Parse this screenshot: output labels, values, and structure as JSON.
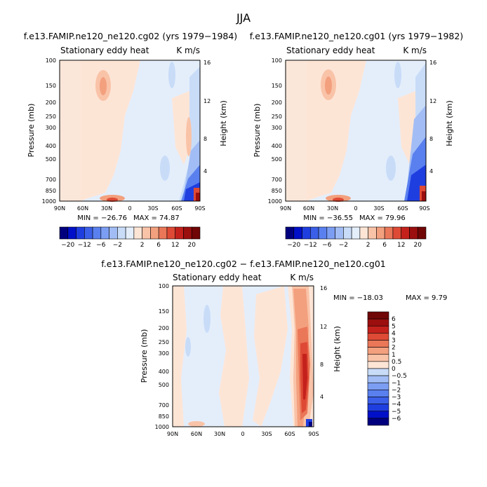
{
  "title": "JJA",
  "colors": {
    "scale": [
      "#00007f",
      "#0010c8",
      "#1f3ee0",
      "#3b5fe8",
      "#5a80ef",
      "#7c9ef2",
      "#a2bdf5",
      "#c8dcf8",
      "#e4eefb",
      "#fde5d6",
      "#f9c3a8",
      "#f3a07e",
      "#ea7758",
      "#de4a35",
      "#c4211c",
      "#9b0f0e",
      "#700606"
    ]
  },
  "chart_data": [
    {
      "type": "heatmap",
      "title": "f.e13.FAMIP.ne120_ne120.cg02 (yrs 1979−1984)",
      "subtitle_left": "Stationary eddy heat",
      "subtitle_right": "K m/s",
      "xlabel": "",
      "ylabel": "Pressure (mb)",
      "ylabel_right": "Height (km)",
      "x_ticks": [
        "90N",
        "60N",
        "30N",
        "0",
        "30S",
        "60S",
        "90S"
      ],
      "y_ticks": [
        "100",
        "150",
        "200",
        "250",
        "300",
        "400",
        "500",
        "700",
        "850",
        "1000"
      ],
      "y_ticks_right": [
        "16",
        "12",
        "8",
        "4"
      ],
      "min_label": "MIN = −26.76",
      "max_label": "MAX =  74.87",
      "colorbar_labels": [
        "−20",
        "−12",
        "−6",
        "−2",
        "2",
        "6",
        "12",
        "20"
      ]
    },
    {
      "type": "heatmap",
      "title": "f.e13.FAMIP.ne120_ne120.cg01 (yrs 1979−1982)",
      "subtitle_left": "Stationary eddy heat",
      "subtitle_right": "K m/s",
      "xlabel": "",
      "ylabel": "Pressure (mb)",
      "ylabel_right": "Height (km)",
      "x_ticks": [
        "90N",
        "60N",
        "30N",
        "0",
        "30S",
        "60S",
        "90S"
      ],
      "y_ticks": [
        "100",
        "150",
        "200",
        "250",
        "300",
        "400",
        "500",
        "700",
        "850",
        "1000"
      ],
      "y_ticks_right": [
        "16",
        "12",
        "8",
        "4"
      ],
      "min_label": "MIN = −36.55",
      "max_label": "MAX =  79.96",
      "colorbar_labels": [
        "−20",
        "−12",
        "−6",
        "−2",
        "2",
        "6",
        "12",
        "20"
      ]
    },
    {
      "type": "heatmap",
      "title": "f.e13.FAMIP.ne120_ne120.cg02 − f.e13.FAMIP.ne120_ne120.cg01",
      "subtitle_left": "Stationary eddy heat",
      "subtitle_right": "K m/s",
      "xlabel": "",
      "ylabel": "Pressure (mb)",
      "ylabel_right": "Height (km)",
      "x_ticks": [
        "90N",
        "60N",
        "30N",
        "0",
        "30S",
        "60S",
        "90S"
      ],
      "y_ticks": [
        "100",
        "150",
        "200",
        "250",
        "300",
        "400",
        "500",
        "700",
        "850",
        "1000"
      ],
      "y_ticks_right": [
        "16",
        "12",
        "8",
        "4"
      ],
      "min_label": "MIN = −18.03",
      "max_label": "MAX =    9.79",
      "colorbar_labels": [
        "6",
        "5",
        "4",
        "3",
        "2",
        "1",
        "0.5",
        "0",
        "−0.5",
        "−1",
        "−2",
        "−3",
        "−4",
        "−5",
        "−6"
      ]
    }
  ]
}
